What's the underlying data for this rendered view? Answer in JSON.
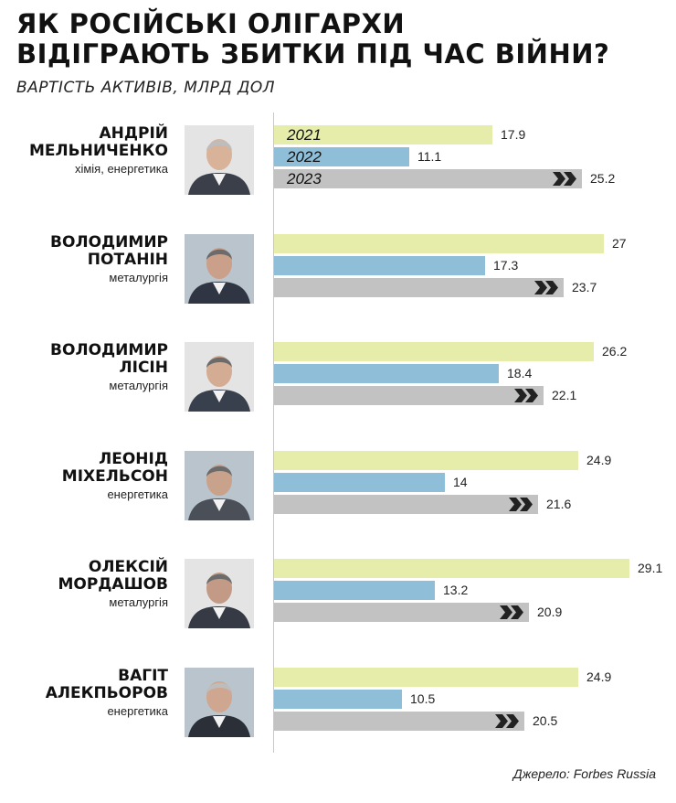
{
  "header": {
    "title_line1": "ЯК РОСІЙСЬКІ ОЛІГАРХИ",
    "title_line2": "ВІДІГРАЮТЬ ЗБИТКИ ПІД ЧАС ВІЙНИ?",
    "subtitle": "ВАРТІСТЬ АКТИВІВ, МЛРД ДОЛ"
  },
  "source": "Джерело: Forbes Russia",
  "colors": {
    "y2021": "#e6edaa",
    "y2022": "#8fbfd8",
    "y2023": "#c2c2c2",
    "chevron": "#222222"
  },
  "chart_data": {
    "type": "bar",
    "orientation": "horizontal",
    "series_labels": [
      "2021",
      "2022",
      "2023"
    ],
    "xlim": [
      0,
      30
    ],
    "categories": [
      "АНДРІЙ МЕЛЬНИЧЕНКО",
      "ВОЛОДИМИР ПОТАНІН",
      "ВОЛОДИМИР ЛІСІН",
      "ЛЕОНІД МІХЕЛЬСОН",
      "ОЛЕКСІЙ МОРДАШОВ",
      "ВАГІТ АЛЕКПЬОРОВ"
    ],
    "series": [
      {
        "name": "2021",
        "values": [
          17.9,
          27,
          26.2,
          24.9,
          29.1,
          24.9
        ]
      },
      {
        "name": "2022",
        "values": [
          11.1,
          17.3,
          18.4,
          14,
          13.2,
          10.5
        ]
      },
      {
        "name": "2023",
        "values": [
          25.2,
          23.7,
          22.1,
          21.6,
          20.9,
          20.5
        ]
      }
    ],
    "value_labels": [
      [
        "17.9",
        "11.1",
        "25.2"
      ],
      [
        "27",
        "17.3",
        "23.7"
      ],
      [
        "26.2",
        "18.4",
        "22.1"
      ],
      [
        "24.9",
        "14",
        "21.6"
      ],
      [
        "29.1",
        "13.2",
        "20.9"
      ],
      [
        "24.9",
        "10.5",
        "20.5"
      ]
    ]
  },
  "people": [
    {
      "name_line1": "АНДРІЙ",
      "name_line2": "МЕЛЬНИЧЕНКО",
      "sector": "хімія, енергетика"
    },
    {
      "name_line1": "ВОЛОДИМИР",
      "name_line2": "ПОТАНІН",
      "sector": "металургія"
    },
    {
      "name_line1": "ВОЛОДИМИР",
      "name_line2": "ЛІСІН",
      "sector": "металургія"
    },
    {
      "name_line1": "ЛЕОНІД",
      "name_line2": "МІХЕЛЬСОН",
      "sector": "енергетика"
    },
    {
      "name_line1": "ОЛЕКСІЙ",
      "name_line2": "МОРДАШОВ",
      "sector": "металургія"
    },
    {
      "name_line1": "ВАГІТ",
      "name_line2": "АЛЕКПЬОРОВ",
      "sector": "енергетика"
    }
  ]
}
